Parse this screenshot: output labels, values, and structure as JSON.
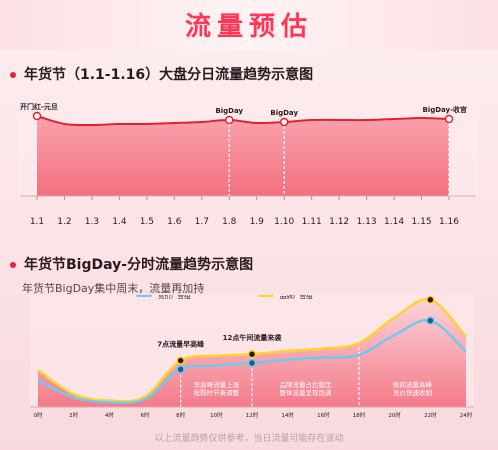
{
  "title": "流量预估",
  "footnote": "以上流量趋势仅供参考，当日流量可能存在波动",
  "colors": {
    "accent": "#ff3656",
    "line1": "#e3222e",
    "blue": "#74c8ee",
    "yellow": "#ffd22e"
  },
  "chart_data": [
    {
      "type": "area",
      "title": "年货节（1.1-1.16）大盘分日流量趋势示意图",
      "x": [
        "1.1",
        "1.2",
        "1.3",
        "1.4",
        "1.5",
        "1.6",
        "1.7",
        "1.8",
        "1.9",
        "1.10",
        "1.11",
        "1.12",
        "1.13",
        "1.14",
        "1.15",
        "1.16"
      ],
      "series": [
        {
          "values": [
            1.0,
            0.92,
            0.91,
            0.92,
            0.92,
            0.93,
            0.94,
            0.96,
            0.93,
            0.94,
            0.96,
            0.96,
            0.96,
            0.97,
            0.98,
            0.97
          ]
        }
      ],
      "annotations": [
        {
          "x": "1.1",
          "label": "开门红-元旦"
        },
        {
          "x": "1.8",
          "label": "BigDay"
        },
        {
          "x": "1.10",
          "label": "BigDay"
        },
        {
          "x": "1.16",
          "label": "BigDay-收官"
        }
      ],
      "grid": false
    },
    {
      "type": "line",
      "title": "年货节BigDay-分时流量趋势示意图",
      "subtitle": "年货节BigDay集中周末，流量再加持",
      "x": [
        "0时",
        "2时",
        "4时",
        "6时",
        "8时",
        "10时",
        "12时",
        "14时",
        "16时",
        "18时",
        "20时",
        "22时",
        "24时"
      ],
      "series": [
        {
          "name": "品牌广告组",
          "values": [
            46,
            16,
            8,
            13,
            58,
            64,
            66,
            70,
            73,
            80,
            112,
            134,
            88
          ]
        },
        {
          "name": "竞价广告组",
          "values": [
            33,
            12,
            6,
            10,
            47,
            52,
            55,
            59,
            62,
            65,
            90,
            108,
            69
          ]
        }
      ],
      "ylim": [
        0,
        140
      ],
      "annotations": [
        {
          "x": "8时",
          "label": "7点流量早高峰"
        },
        {
          "x": "12时",
          "label": "12点午间流量来袭"
        },
        {
          "x": "22时",
          "label": "晚间流量高峰"
        }
      ],
      "band_notes": [
        {
          "x0": "8时",
          "x1": "12时",
          "lines": [
            "早高峰流量上涨",
            "抢购时节奏调整"
          ]
        },
        {
          "x0": "12时",
          "x1": "18时",
          "lines": [
            "品牌流量占比稳定",
            "整体流量呈现饱满"
          ]
        },
        {
          "x0": "18时",
          "x1": "24时",
          "lines": [
            "晚间流量高峰",
            "竞价快速收割"
          ]
        }
      ],
      "legend_position": "top"
    }
  ]
}
